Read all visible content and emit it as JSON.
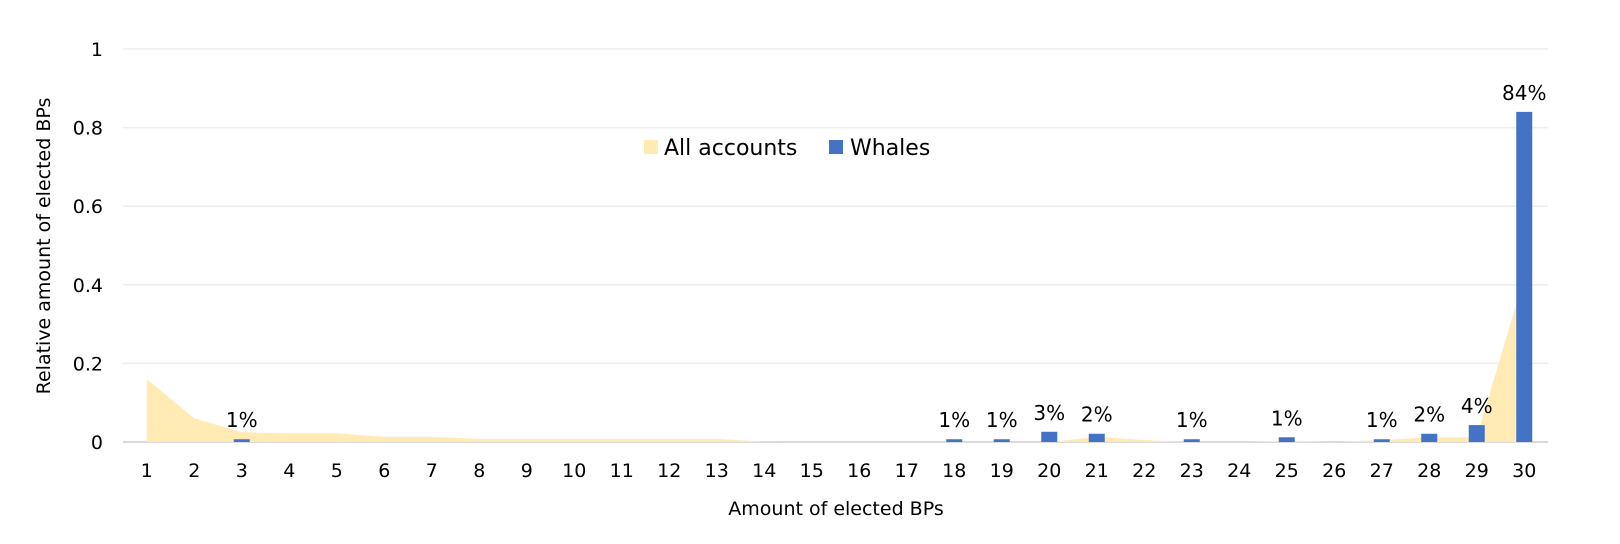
{
  "chart_data": {
    "type": "bar",
    "title": "",
    "xlabel": "Amount of elected BPs",
    "ylabel": "Relative amount of elected BPs",
    "ylim": [
      0,
      1
    ],
    "yticks": [
      "0",
      "0.2",
      "0.4",
      "0.6",
      "0.8",
      "1"
    ],
    "ytick_values": [
      0,
      0.2,
      0.4,
      0.6,
      0.8,
      1
    ],
    "grid": true,
    "legend_position": "top-center",
    "categories": [
      "1",
      "2",
      "3",
      "4",
      "5",
      "6",
      "7",
      "8",
      "9",
      "10",
      "11",
      "12",
      "13",
      "14",
      "15",
      "16",
      "17",
      "18",
      "19",
      "20",
      "21",
      "22",
      "23",
      "24",
      "25",
      "26",
      "27",
      "28",
      "29",
      "30"
    ],
    "series": [
      {
        "name": "All accounts",
        "kind": "area",
        "color": "#FFEBB3",
        "values": [
          0.16,
          0.06,
          0.025,
          0.022,
          0.022,
          0.013,
          0.013,
          0.008,
          0.008,
          0.008,
          0.008,
          0.008,
          0.008,
          0.001,
          0,
          0,
          0,
          0,
          0,
          0,
          0.013,
          0.005,
          0,
          0,
          0.004,
          0,
          0.005,
          0.012,
          0.012,
          0.42
        ]
      },
      {
        "name": "Whales",
        "kind": "bar",
        "color": "#4472C4",
        "values": [
          0,
          0,
          0.007,
          0,
          0,
          0,
          0,
          0,
          0,
          0,
          0,
          0,
          0,
          0,
          0,
          0,
          0,
          0.007,
          0.007,
          0.026,
          0.021,
          0,
          0.007,
          0,
          0.012,
          0,
          0.007,
          0.021,
          0.043,
          0.84
        ],
        "labels": [
          "",
          "",
          "1%",
          "",
          "",
          "",
          "",
          "",
          "",
          "",
          "",
          "",
          "",
          "",
          "",
          "",
          "",
          "1%",
          "1%",
          "3%",
          "2%",
          "",
          "1%",
          "",
          "1%",
          "",
          "1%",
          "2%",
          "4%",
          "84%"
        ]
      }
    ]
  }
}
